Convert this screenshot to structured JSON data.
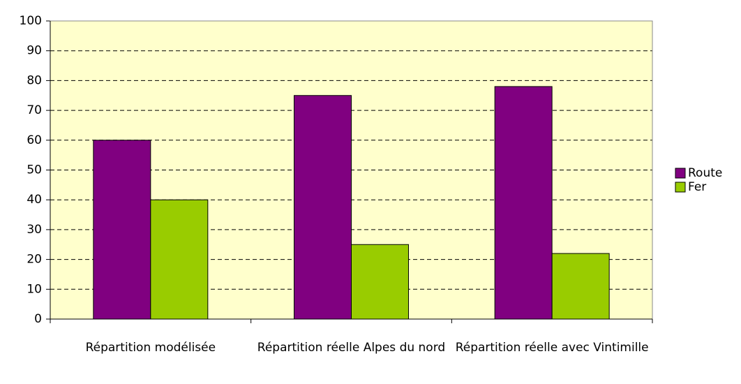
{
  "chart_data": {
    "type": "bar",
    "categories": [
      "Répartition modélisée",
      "Répartition réelle Alpes du nord",
      "Répartition réelle avec Vintimille"
    ],
    "series": [
      {
        "name": "Route",
        "color": "#800080",
        "values": [
          60,
          75,
          78
        ]
      },
      {
        "name": "Fer",
        "color": "#99cc00",
        "values": [
          40,
          25,
          22
        ]
      }
    ],
    "ylim": [
      0,
      100
    ],
    "yticks": [
      0,
      10,
      20,
      30,
      40,
      50,
      60,
      70,
      80,
      90,
      100
    ],
    "grid": true,
    "legend": "right"
  }
}
